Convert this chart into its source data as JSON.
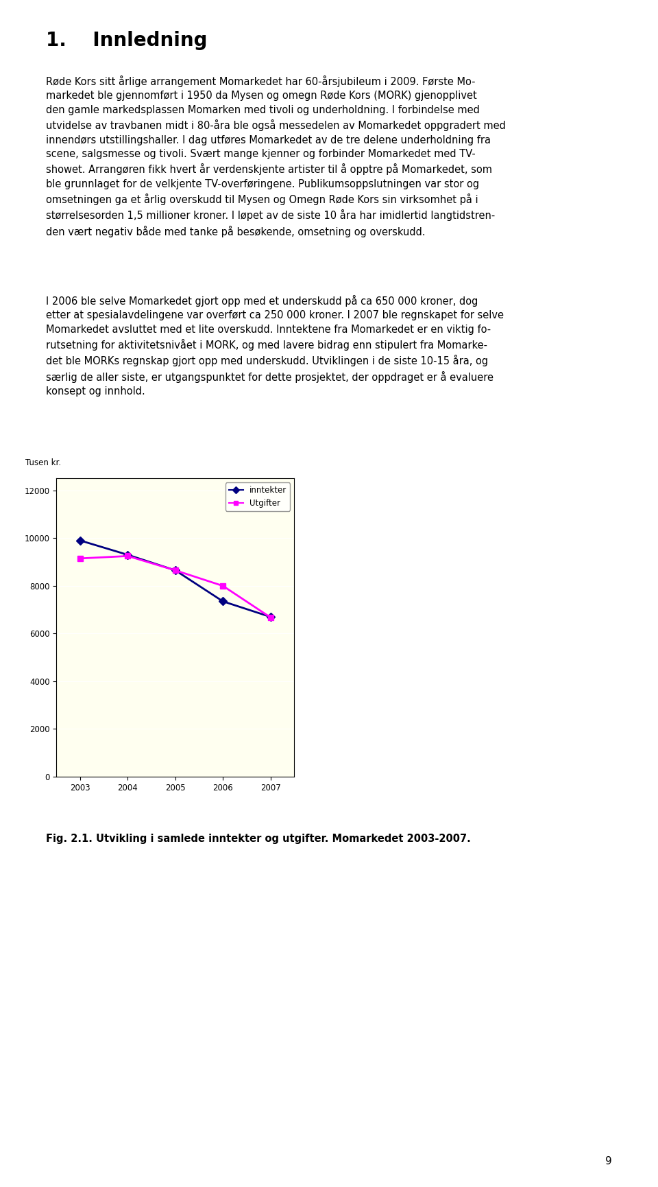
{
  "title": "1.    Innledning",
  "para1_lines": [
    "Røde Kors sitt årlige arrangement Momarkedet har 60-årsjubileum i 2009. Første Mo-",
    "markedet ble gjennomført i 1950 da Mysen og omegn Røde Kors (MORK) gjenopplivet",
    "den gamle markedsplassen Momarken med tivoli og underholdning. I forbindelse med",
    "utvidelse av travbanen midt i 80-åra ble også messedelen av Momarkedet oppgradert med",
    "innendørs utstillingshaller. I dag utføres Momarkedet av de tre delene underholdning fra",
    "scene, salgsmesse og tivoli. Svært mange kjenner og forbinder Momarkedet med TV-",
    "showet. Arrangøren fikk hvert år verdenskjente artister til å opptre på Momarkedet, som",
    "ble grunnlaget for de velkjente TV-overføringene. Publikumsoppslutningen var stor og",
    "omsetningen ga et årlig overskudd til Mysen og Omegn Røde Kors sin virksomhet på i",
    "størrelsesorden 1,5 millioner kroner. I løpet av de siste 10 åra har imidlertid langtidstren-",
    "den vært negativ både med tanke på besøkende, omsetning og overskudd."
  ],
  "para2_lines": [
    "I 2006 ble selve Momarkedet gjort opp med et underskudd på ca 650 000 kroner, dog",
    "etter at spesialavdelingene var overført ca 250 000 kroner. I 2007 ble regnskapet for selve",
    "Momarkedet avsluttet med et lite overskudd. Inntektene fra Momarkedet er en viktig fo-",
    "rutsetning for aktivitetsnivået i MORK, og med lavere bidrag enn stipulert fra Momarke-",
    "det ble MORKs regnskap gjort opp med underskudd. Utviklingen i de siste 10-15 åra, og",
    "særlig de aller siste, er utgangspunktet for dette prosjektet, der oppdraget er å evaluere",
    "konsept og innhold."
  ],
  "fig_caption": "Fig. 2.1. Utvikling i samlede inntekter og utgifter. Momarkedet 2003-2007.",
  "ylabel_label": "Tusen kr.",
  "years": [
    2003,
    2004,
    2005,
    2006,
    2007
  ],
  "inntekter": [
    9900,
    9300,
    8650,
    7350,
    6700
  ],
  "utgifter": [
    9150,
    9250,
    8650,
    8000,
    6680
  ],
  "yticks": [
    0,
    2000,
    4000,
    6000,
    8000,
    10000,
    12000
  ],
  "ylim": [
    0,
    12500
  ],
  "inntekter_color": "#000080",
  "utgifter_color": "#FF00FF",
  "plot_bg_color": "#FFFFF0",
  "outer_bg_color": "#C0C0C0",
  "page_bg_color": "#FFFFFF",
  "legend_inntekter": "inntekter",
  "legend_utgifter": "Utgifter",
  "page_number": "9",
  "text_fontsize": 10.5,
  "title_fontsize": 20
}
